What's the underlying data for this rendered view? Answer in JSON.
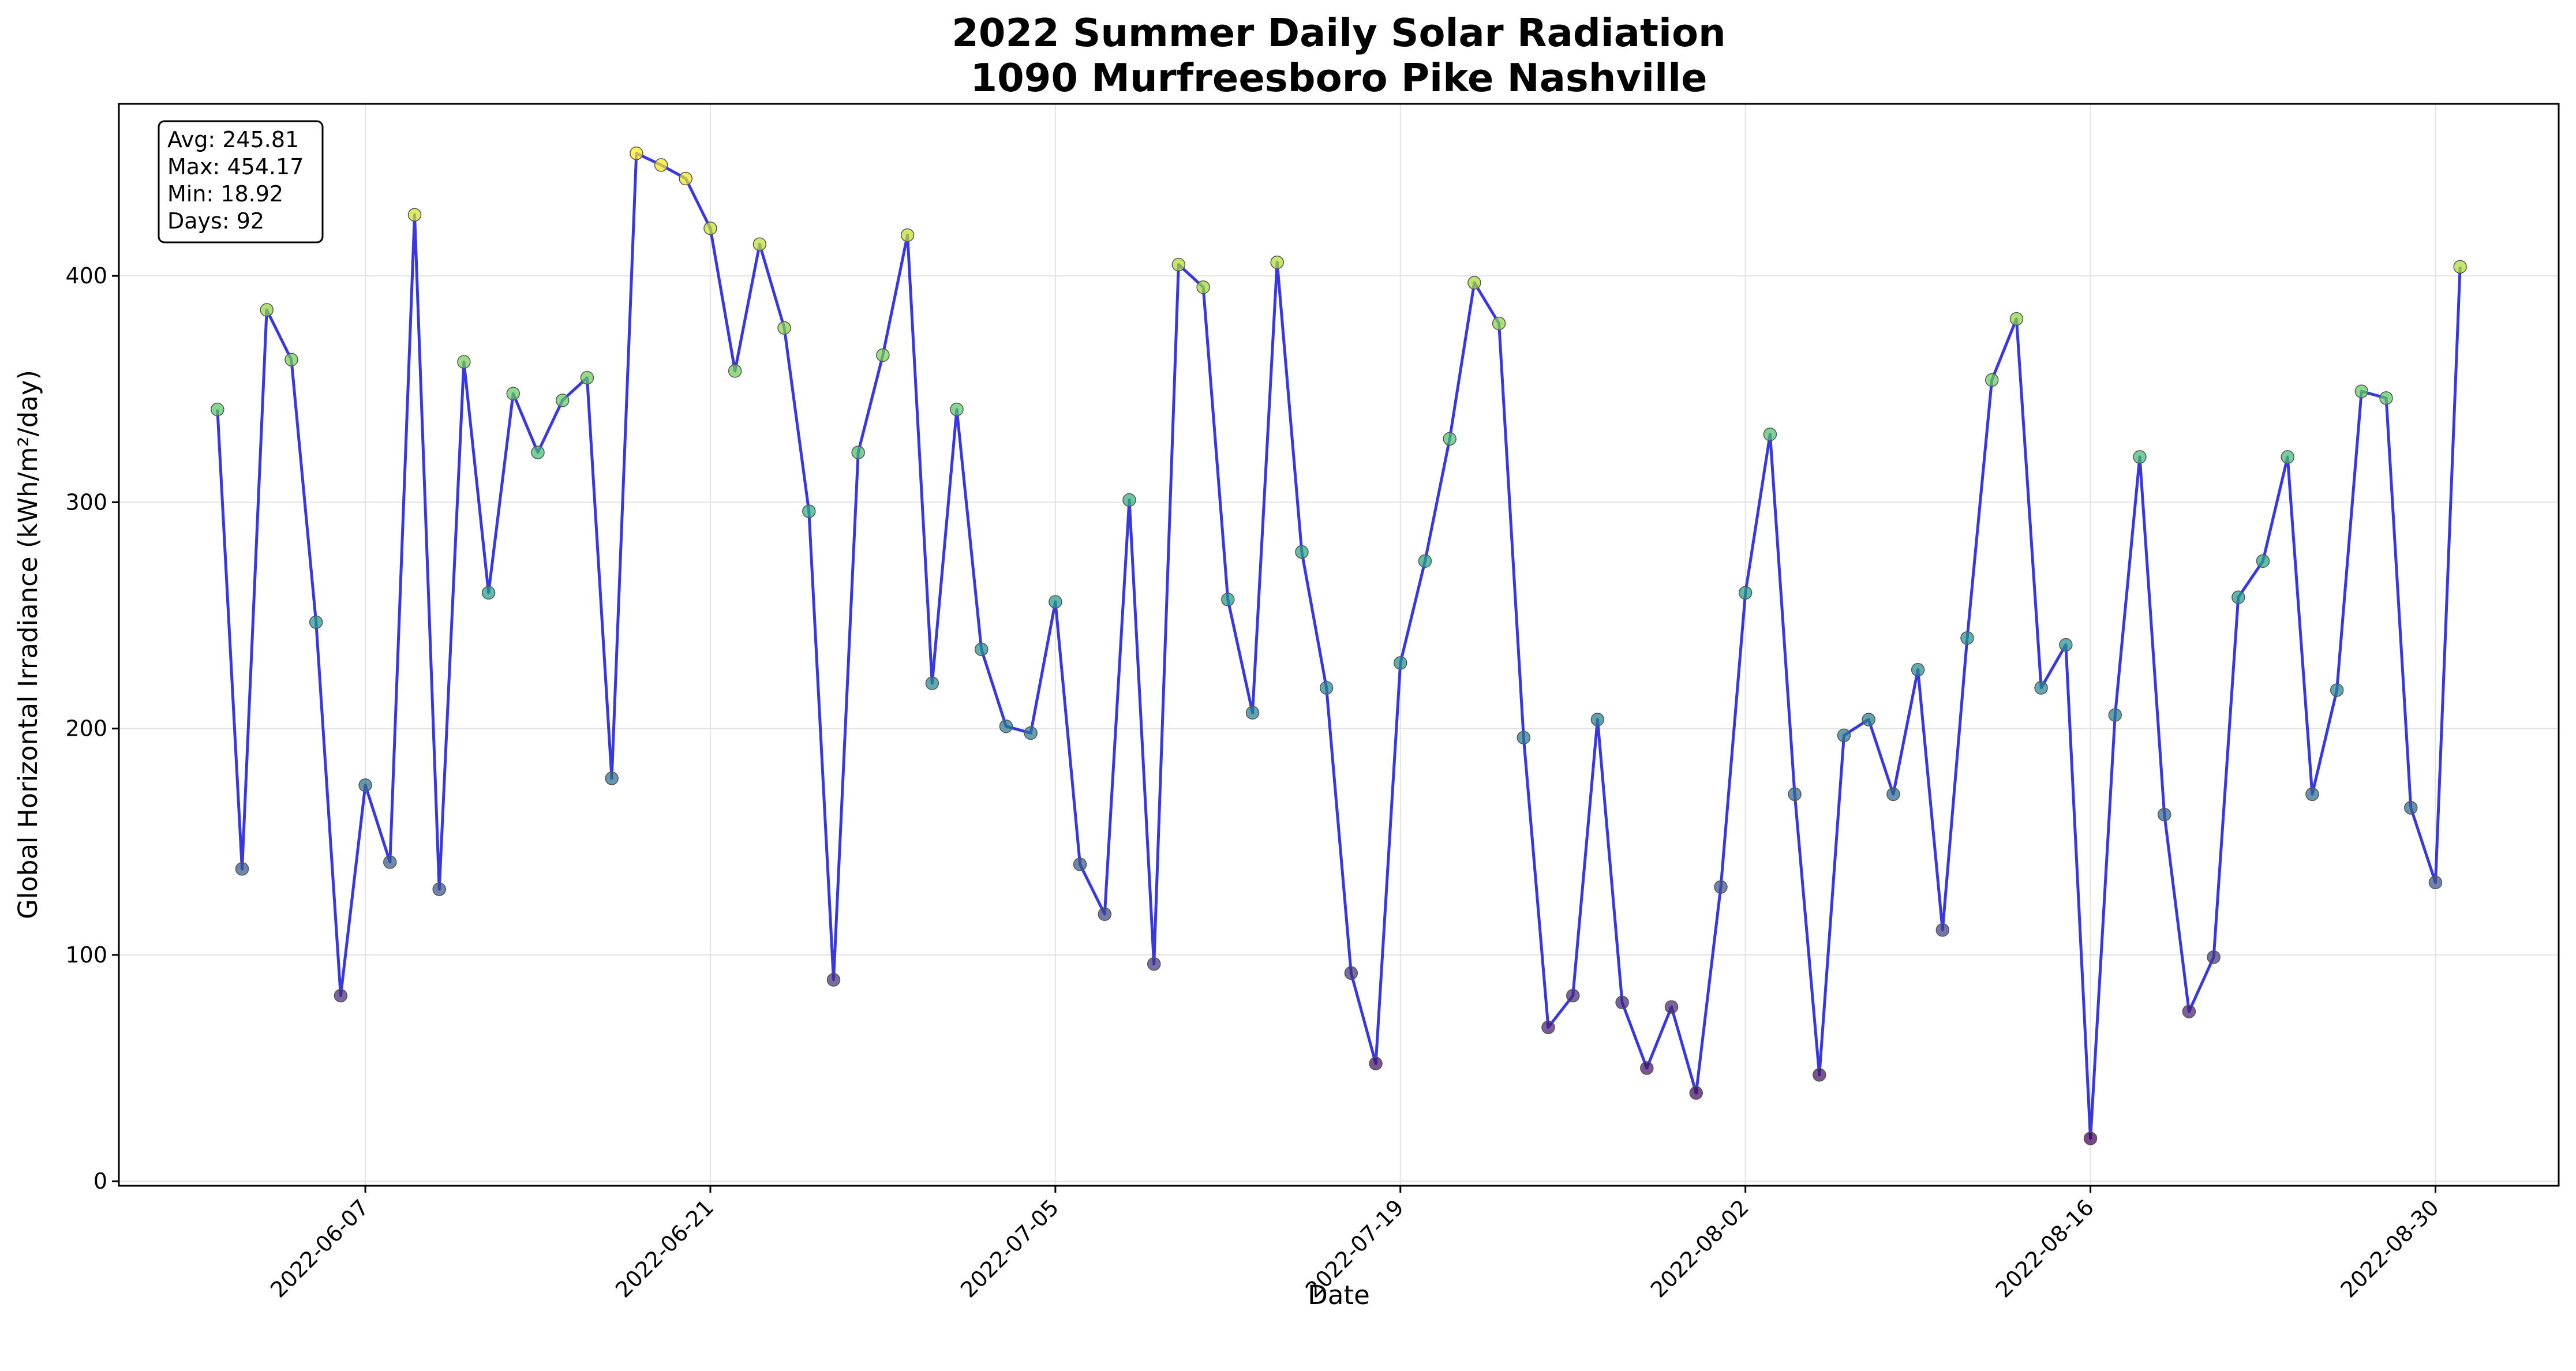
{
  "chart_data": {
    "type": "line",
    "title": "2022 Summer Daily Solar Radiation",
    "subtitle": "1090 Murfreesboro Pike Nashville",
    "xlabel": "Date",
    "ylabel": "Global Horizontal Irradiance (kWh/m²/day)",
    "x_range": [
      "2022-05-28",
      "2022-09-04"
    ],
    "ylim": [
      -2,
      476
    ],
    "grid": true,
    "line_color": "#2222dd",
    "colormap": "viridis",
    "y_ticks": [
      0,
      100,
      200,
      300,
      400
    ],
    "x_ticks": [
      "2022-06-07",
      "2022-06-21",
      "2022-07-05",
      "2022-07-19",
      "2022-08-02",
      "2022-08-16",
      "2022-08-30"
    ],
    "stats": {
      "avg": "Avg: 245.81",
      "max": "Max: 454.17",
      "min": "Min: 18.92",
      "days": "Days: 92"
    },
    "series": [
      {
        "x": [
          "2022-06-01",
          "2022-06-02",
          "2022-06-03",
          "2022-06-04",
          "2022-06-05",
          "2022-06-06",
          "2022-06-07",
          "2022-06-08",
          "2022-06-09",
          "2022-06-10",
          "2022-06-11",
          "2022-06-12",
          "2022-06-13",
          "2022-06-14",
          "2022-06-15",
          "2022-06-16",
          "2022-06-17",
          "2022-06-18",
          "2022-06-19",
          "2022-06-20",
          "2022-06-21",
          "2022-06-22",
          "2022-06-23",
          "2022-06-24",
          "2022-06-25",
          "2022-06-26",
          "2022-06-27",
          "2022-06-28",
          "2022-06-29",
          "2022-06-30",
          "2022-07-01",
          "2022-07-02",
          "2022-07-03",
          "2022-07-04",
          "2022-07-05",
          "2022-07-06",
          "2022-07-07",
          "2022-07-08",
          "2022-07-09",
          "2022-07-10",
          "2022-07-11",
          "2022-07-12",
          "2022-07-13",
          "2022-07-14",
          "2022-07-15",
          "2022-07-16",
          "2022-07-17",
          "2022-07-18",
          "2022-07-19",
          "2022-07-20",
          "2022-07-21",
          "2022-07-22",
          "2022-07-23",
          "2022-07-24",
          "2022-07-25",
          "2022-07-26",
          "2022-07-27",
          "2022-07-28",
          "2022-07-29",
          "2022-07-30",
          "2022-07-31",
          "2022-08-01",
          "2022-08-02",
          "2022-08-03",
          "2022-08-04",
          "2022-08-05",
          "2022-08-06",
          "2022-08-07",
          "2022-08-08",
          "2022-08-09",
          "2022-08-10",
          "2022-08-11",
          "2022-08-12",
          "2022-08-13",
          "2022-08-14",
          "2022-08-15",
          "2022-08-16",
          "2022-08-17",
          "2022-08-18",
          "2022-08-19",
          "2022-08-20",
          "2022-08-21",
          "2022-08-22",
          "2022-08-23",
          "2022-08-24",
          "2022-08-25",
          "2022-08-26",
          "2022-08-27",
          "2022-08-28",
          "2022-08-29",
          "2022-08-30",
          "2022-08-31"
        ],
        "y": [
          341,
          138,
          385,
          363,
          247,
          82,
          175,
          141,
          427,
          129,
          362,
          260,
          348,
          322,
          345,
          355,
          178,
          454.17,
          449,
          443,
          421,
          358,
          414,
          377,
          296,
          89,
          322,
          365,
          418,
          220,
          341,
          235,
          201,
          198,
          256,
          140,
          118,
          301,
          96,
          405,
          395,
          257,
          207,
          406,
          278,
          218,
          92,
          52,
          229,
          274,
          328,
          397,
          379,
          196,
          68,
          82,
          204,
          79,
          50,
          77,
          39,
          130,
          260,
          330,
          171,
          47,
          197,
          204,
          171,
          226,
          111,
          240,
          354,
          381,
          218,
          237,
          18.92,
          206,
          320,
          162,
          75,
          99,
          258,
          274,
          320,
          171,
          217,
          349,
          346,
          165,
          132,
          404
        ]
      }
    ]
  }
}
